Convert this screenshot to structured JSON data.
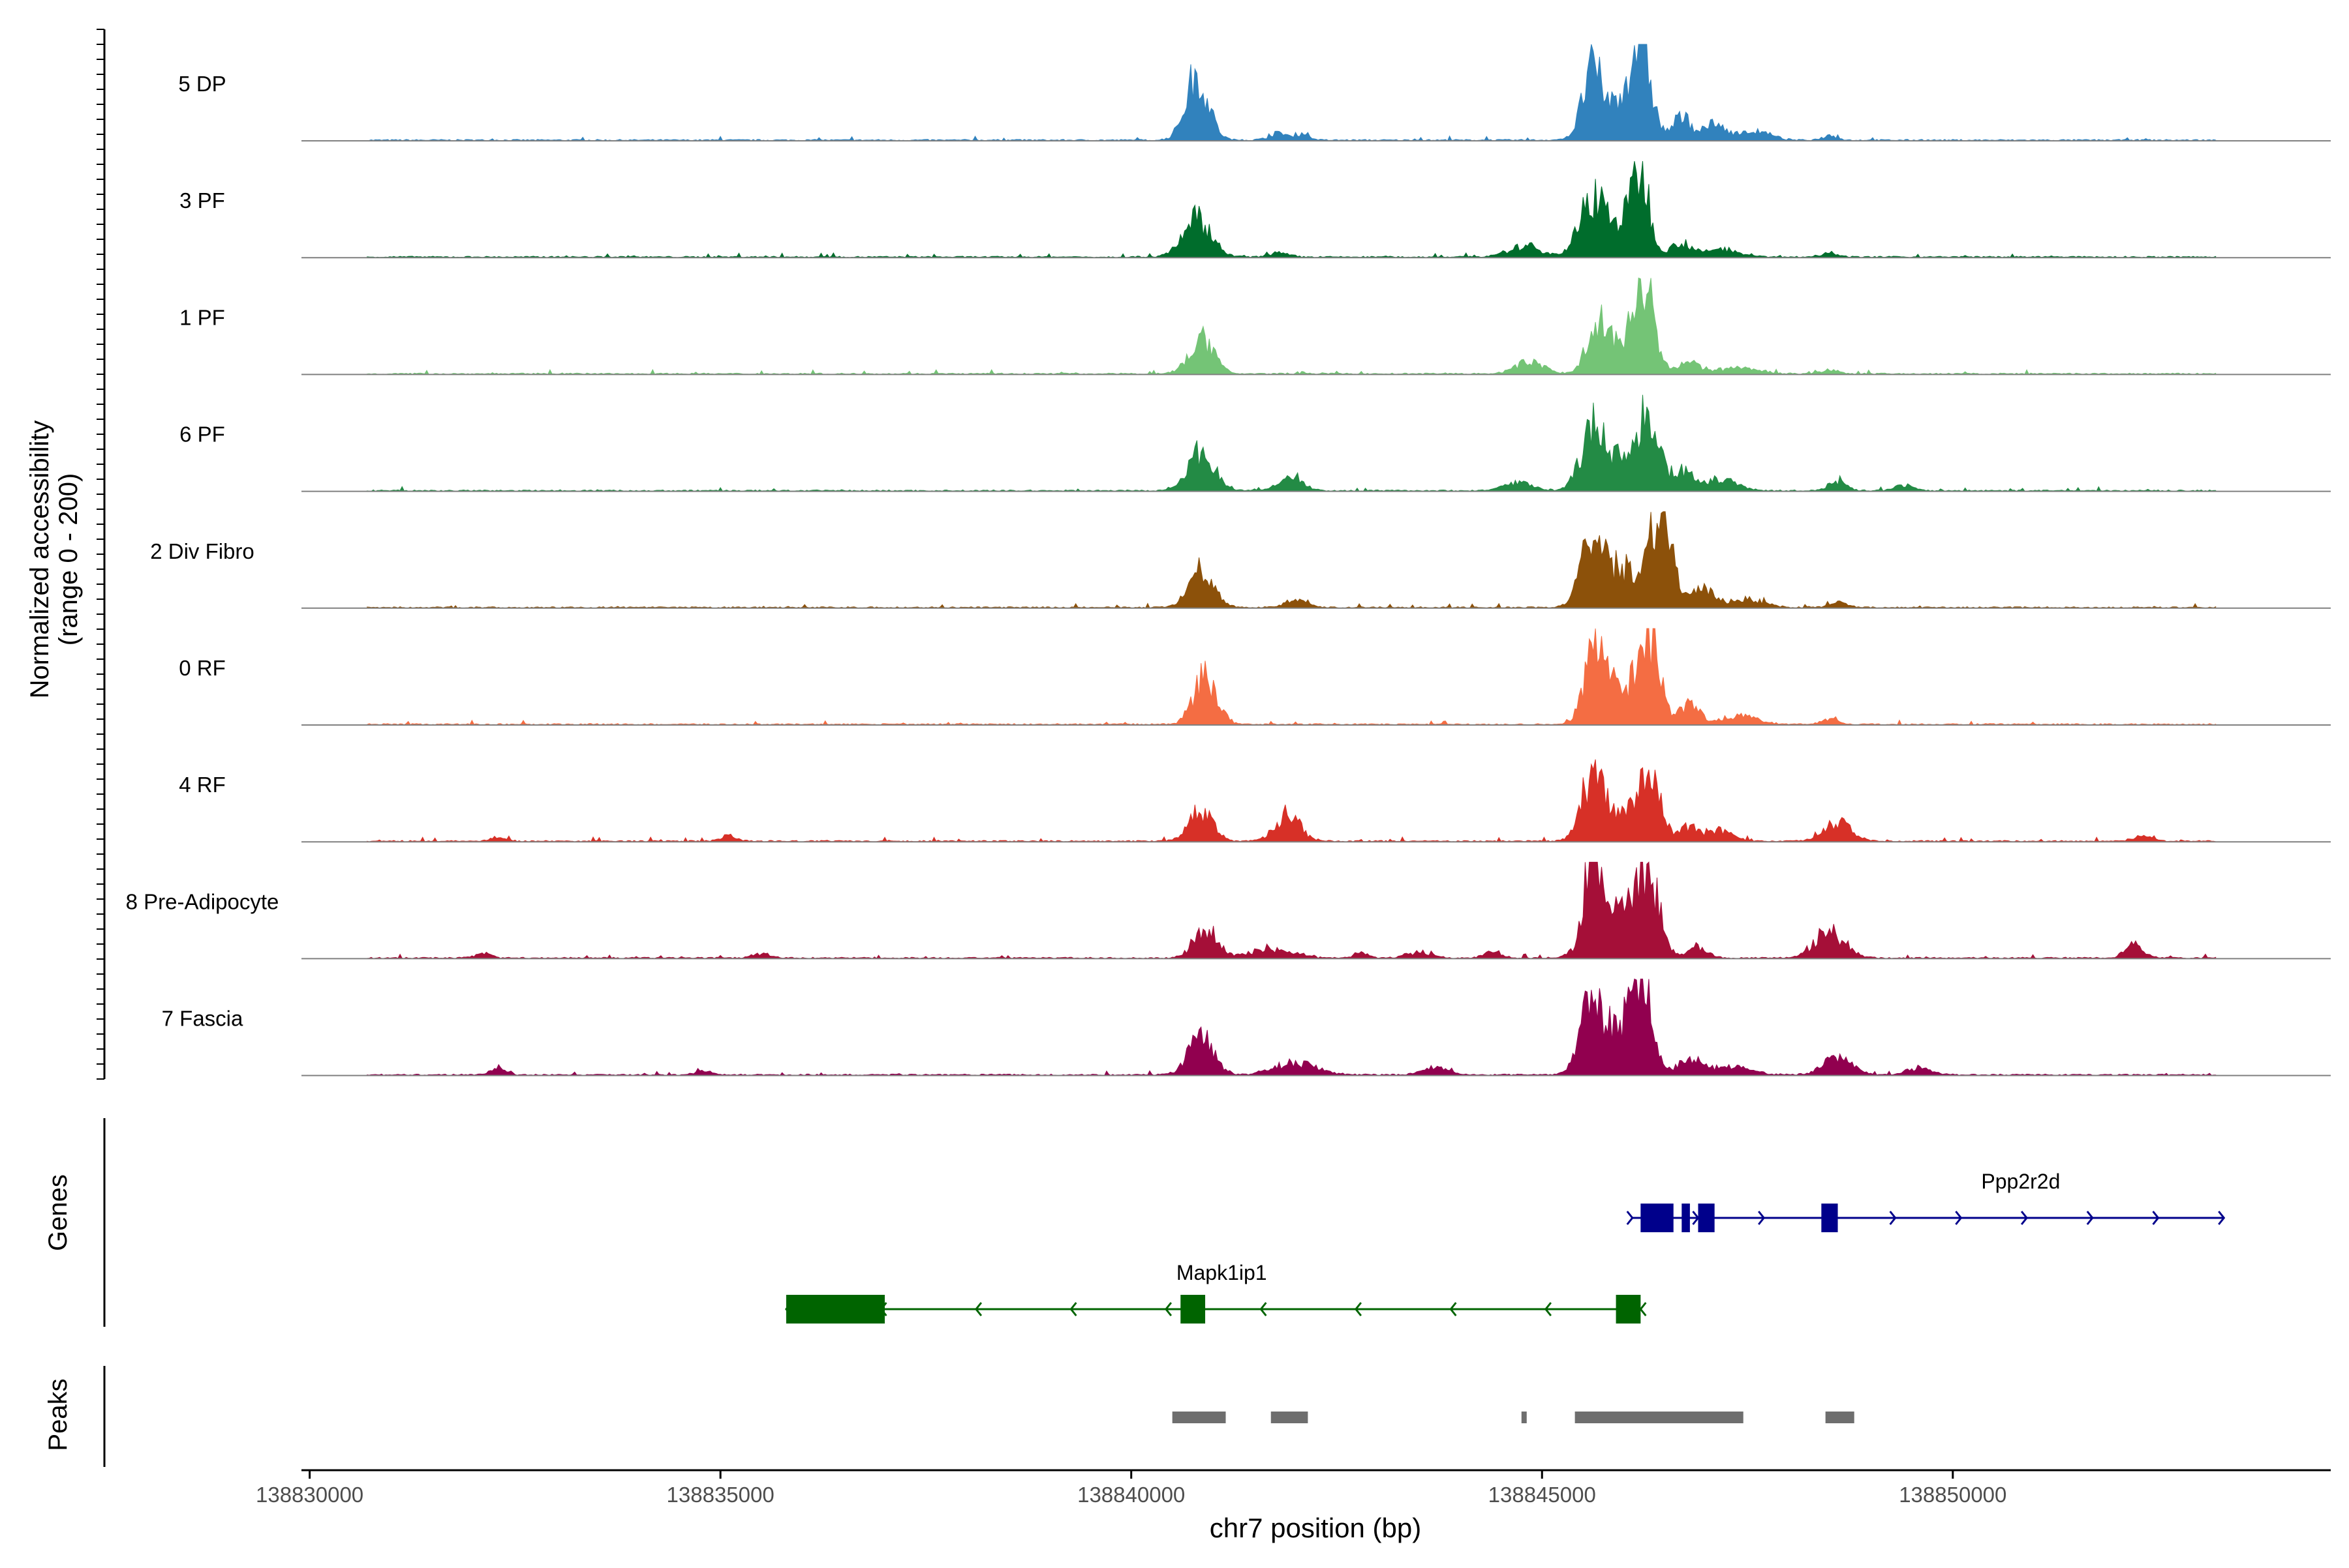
{
  "chart_data": {
    "type": "area",
    "title": "",
    "xlabel": "chr7 position (bp)",
    "ylabel_line1": "Normalized accessibility",
    "ylabel_line2": "(range 0 - 200)",
    "ylim": [
      0,
      200
    ],
    "xlim": [
      138829900,
      138854600
    ],
    "x_ticks": [
      138830000,
      138835000,
      138840000,
      138845000,
      138850000
    ],
    "x_tick_labels": [
      "138830000",
      "138835000",
      "138840000",
      "138845000",
      "138850000"
    ],
    "signal_range": [
      138830700,
      138853200
    ],
    "series": [
      {
        "name": "5 DP",
        "color": "#3182BD",
        "peaks": [
          [
            138840800,
            130,
            140
          ],
          [
            138841800,
            14,
            120
          ],
          [
            138842100,
            9,
            90
          ],
          [
            138845600,
            110,
            110
          ],
          [
            138846200,
            180,
            120
          ],
          [
            138845900,
            70,
            250
          ],
          [
            138846700,
            45,
            110
          ],
          [
            138847100,
            30,
            150
          ],
          [
            138847600,
            18,
            180
          ],
          [
            138848500,
            10,
            90
          ]
        ]
      },
      {
        "name": "3 PF",
        "color": "#006D2C",
        "peaks": [
          [
            138840800,
            80,
            170
          ],
          [
            138841800,
            10,
            110
          ],
          [
            138844800,
            22,
            200
          ],
          [
            138845600,
            95,
            150
          ],
          [
            138846200,
            150,
            110
          ],
          [
            138845900,
            60,
            250
          ],
          [
            138846700,
            30,
            120
          ],
          [
            138847200,
            16,
            200
          ],
          [
            138848500,
            10,
            100
          ]
        ]
      },
      {
        "name": "1 PF",
        "color": "#74C476",
        "peaks": [
          [
            138840850,
            70,
            150
          ],
          [
            138844850,
            25,
            170
          ],
          [
            138845650,
            90,
            110
          ],
          [
            138846250,
            190,
            120
          ],
          [
            138845900,
            60,
            200
          ],
          [
            138846800,
            22,
            140
          ],
          [
            138847400,
            12,
            250
          ],
          [
            138848500,
            8,
            100
          ]
        ]
      },
      {
        "name": "6 PF",
        "color": "#238B45",
        "peaks": [
          [
            138840850,
            80,
            160
          ],
          [
            138841950,
            30,
            140
          ],
          [
            138844700,
            18,
            160
          ],
          [
            138845600,
            95,
            130
          ],
          [
            138846300,
            150,
            120
          ],
          [
            138845900,
            70,
            250
          ],
          [
            138846700,
            40,
            130
          ],
          [
            138847200,
            25,
            180
          ],
          [
            138848600,
            18,
            110
          ],
          [
            138849400,
            12,
            100
          ]
        ]
      },
      {
        "name": "2 Div Fibro",
        "color": "#8C510A",
        "peaks": [
          [
            138840850,
            80,
            150
          ],
          [
            138842000,
            14,
            140
          ],
          [
            138845600,
            110,
            140
          ],
          [
            138846450,
            190,
            130
          ],
          [
            138846000,
            80,
            250
          ],
          [
            138846950,
            35,
            150
          ],
          [
            138847500,
            18,
            200
          ],
          [
            138848600,
            12,
            100
          ]
        ]
      },
      {
        "name": "0 RF",
        "color": "#F46D43",
        "peaks": [
          [
            138840900,
            100,
            140
          ],
          [
            138845650,
            135,
            130
          ],
          [
            138846300,
            175,
            130
          ],
          [
            138845950,
            60,
            220
          ],
          [
            138846800,
            40,
            120
          ],
          [
            138847400,
            18,
            220
          ],
          [
            138848500,
            10,
            100
          ]
        ]
      },
      {
        "name": "4 RF",
        "color": "#D73027",
        "peaks": [
          [
            138840850,
            62,
            140
          ],
          [
            138841900,
            55,
            150
          ],
          [
            138845600,
            120,
            130
          ],
          [
            138846300,
            150,
            130
          ],
          [
            138845900,
            55,
            200
          ],
          [
            138846800,
            30,
            120
          ],
          [
            138847200,
            22,
            150
          ],
          [
            138848600,
            38,
            170
          ],
          [
            138852300,
            12,
            100
          ],
          [
            138835100,
            12,
            90
          ],
          [
            138832300,
            10,
            90
          ]
        ]
      },
      {
        "name": "8 Pre-Adipocyte",
        "color": "#A50F38",
        "peaks": [
          [
            138840900,
            62,
            140
          ],
          [
            138841700,
            18,
            250
          ],
          [
            138842800,
            14,
            80
          ],
          [
            138843500,
            12,
            150
          ],
          [
            138844400,
            14,
            100
          ],
          [
            138845600,
            195,
            90
          ],
          [
            138845900,
            100,
            260
          ],
          [
            138846300,
            145,
            130
          ],
          [
            138846900,
            20,
            120
          ],
          [
            138848500,
            55,
            180
          ],
          [
            138852200,
            28,
            110
          ],
          [
            138835500,
            10,
            100
          ],
          [
            138832100,
            10,
            90
          ]
        ]
      },
      {
        "name": "7 Fascia",
        "color": "#91004F",
        "peaks": [
          [
            138840850,
            82,
            150
          ],
          [
            138842000,
            26,
            250
          ],
          [
            138843700,
            14,
            150
          ],
          [
            138845600,
            120,
            130
          ],
          [
            138846200,
            190,
            120
          ],
          [
            138845900,
            80,
            250
          ],
          [
            138846800,
            30,
            150
          ],
          [
            138847300,
            16,
            250
          ],
          [
            138848600,
            35,
            170
          ],
          [
            138849600,
            14,
            150
          ],
          [
            138832300,
            14,
            90
          ],
          [
            138834800,
            10,
            90
          ]
        ]
      }
    ],
    "genes": [
      {
        "name": "Ppp2r2d",
        "strand": "+",
        "color": "#00008B",
        "start": 138846100,
        "end": 138853300,
        "label_x": 138849000,
        "exons": [
          [
            138846200,
            138846600
          ],
          [
            138846700,
            138846800
          ],
          [
            138846900,
            138847100
          ],
          [
            138848400,
            138848600
          ]
        ]
      },
      {
        "name": "Mapk1ip1",
        "strand": "-",
        "color": "#006400",
        "start": 138835800,
        "end": 138846200,
        "label_x": 138841100,
        "exons": [
          [
            138835800,
            138837000
          ],
          [
            138840600,
            138840900
          ],
          [
            138845900,
            138846200
          ]
        ]
      }
    ],
    "tracks": {
      "genes": "Genes",
      "peaks": "Peaks"
    },
    "peaks_color": "#6E6E6E",
    "peaks": [
      [
        138840500,
        138841150
      ],
      [
        138841700,
        138842150
      ],
      [
        138844750,
        138844800
      ],
      [
        138845400,
        138847450
      ],
      [
        138848450,
        138848800
      ]
    ]
  }
}
